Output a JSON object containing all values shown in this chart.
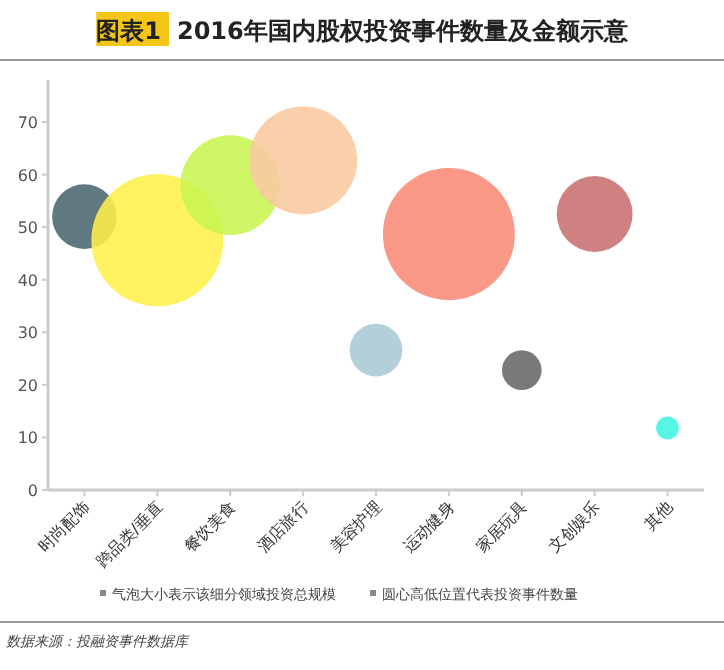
{
  "chart_data": {
    "type": "bubble",
    "title": "2016年国内股权投资事件数量及金额示意",
    "categories": [
      "时尚配饰",
      "跨品类/垂直",
      "餐饮美食",
      "酒店旅行",
      "美容护理",
      "运动健身",
      "家居玩具",
      "文创娱乐",
      "其他"
    ],
    "values": [
      52,
      47.5,
      58,
      62.7,
      26.6,
      48.7,
      22.8,
      52.5,
      11.8
    ],
    "sizes": [
      0.24,
      1,
      0.57,
      0.67,
      0.16,
      1,
      0.09,
      0.33,
      0.03
    ],
    "colors": [
      "#4a6670",
      "#fff04a",
      "#c8f550",
      "#f9c9a0",
      "#a9c8d4",
      "#f88a76",
      "#666666",
      "#c87070",
      "#40f5e0"
    ],
    "ylim": [
      0,
      78
    ],
    "yticks": [
      0,
      10,
      20,
      30,
      40,
      50,
      60,
      70
    ],
    "grid": false,
    "annotations": [
      "图表1",
      "气泡大小表示该细分领域投资总规模",
      "圆心高低位置代表投资事件数量",
      "数据来源：投融资事件数据库"
    ]
  }
}
